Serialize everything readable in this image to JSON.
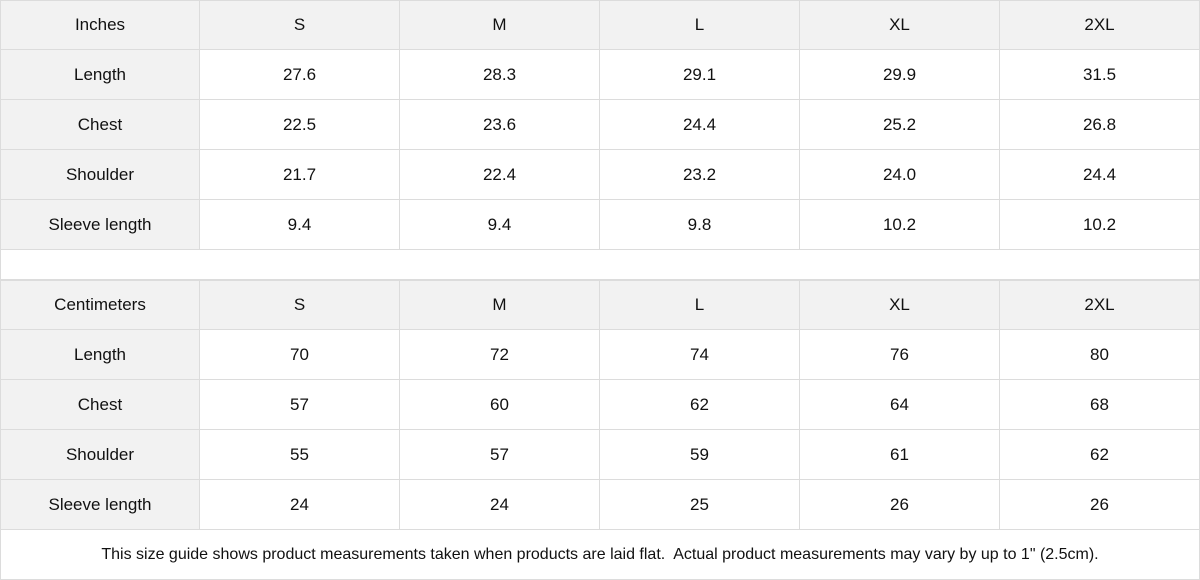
{
  "tables": [
    {
      "unit": "Inches",
      "sizes": [
        "S",
        "M",
        "L",
        "XL",
        "2XL"
      ],
      "rows": [
        {
          "label": "Length",
          "values": [
            "27.6",
            "28.3",
            "29.1",
            "29.9",
            "31.5"
          ]
        },
        {
          "label": "Chest",
          "values": [
            "22.5",
            "23.6",
            "24.4",
            "25.2",
            "26.8"
          ]
        },
        {
          "label": "Shoulder",
          "values": [
            "21.7",
            "22.4",
            "23.2",
            "24.0",
            "24.4"
          ]
        },
        {
          "label": "Sleeve length",
          "values": [
            "9.4",
            "9.4",
            "9.8",
            "10.2",
            "10.2"
          ]
        }
      ]
    },
    {
      "unit": "Centimeters",
      "sizes": [
        "S",
        "M",
        "L",
        "XL",
        "2XL"
      ],
      "rows": [
        {
          "label": "Length",
          "values": [
            "70",
            "72",
            "74",
            "76",
            "80"
          ]
        },
        {
          "label": "Chest",
          "values": [
            "57",
            "60",
            "62",
            "64",
            "68"
          ]
        },
        {
          "label": "Shoulder",
          "values": [
            "55",
            "57",
            "59",
            "61",
            "62"
          ]
        },
        {
          "label": "Sleeve length",
          "values": [
            "24",
            "24",
            "25",
            "26",
            "26"
          ]
        }
      ]
    }
  ],
  "note": "This size guide shows product measurements taken when products are laid flat.  Actual product measurements may vary by up to 1\" (2.5cm).",
  "colors": {
    "header_bg": "#f2f2f2",
    "border": "#dcdcdc"
  }
}
